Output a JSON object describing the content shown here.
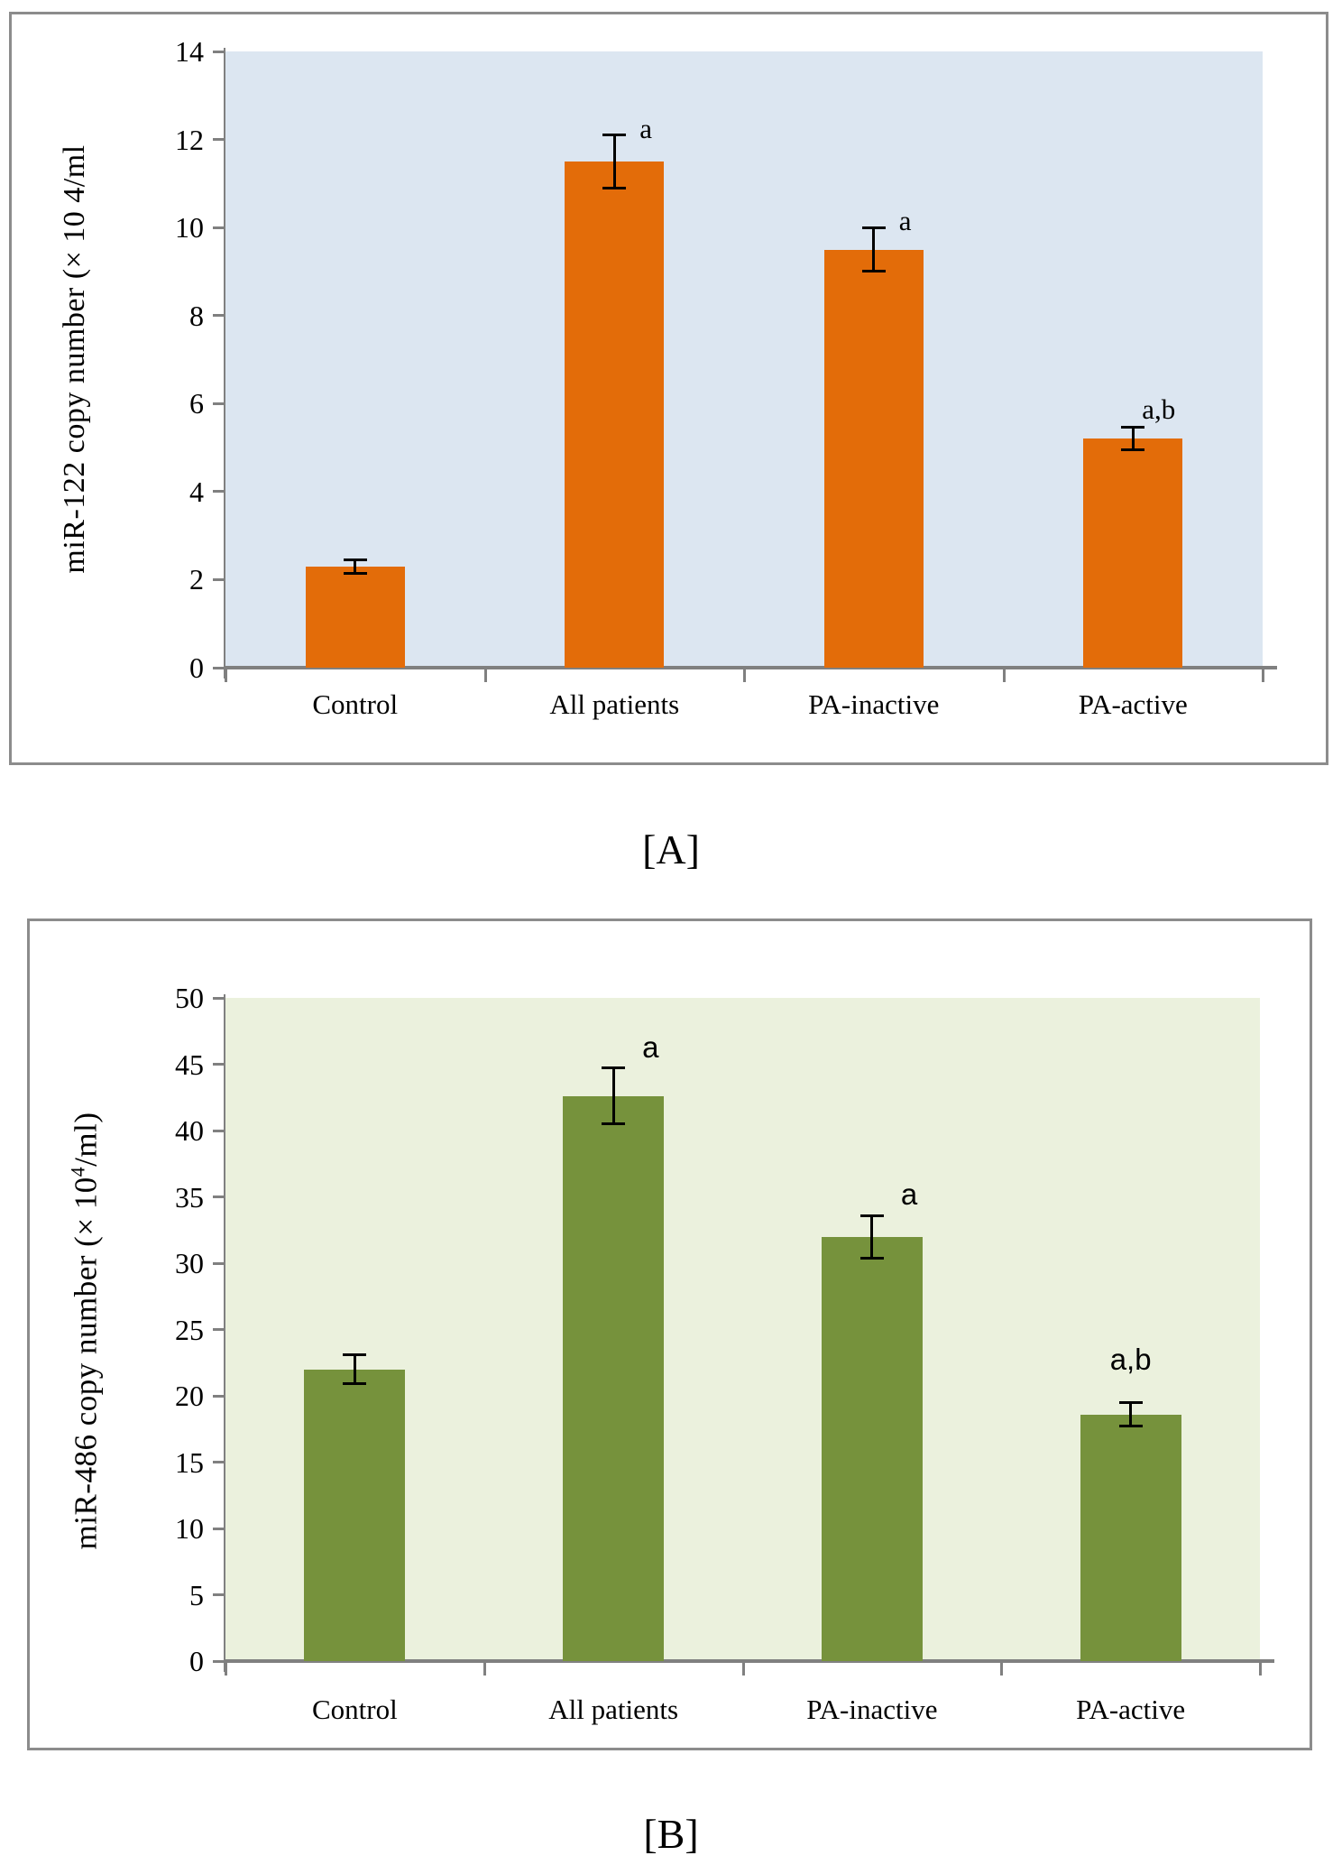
{
  "figure": {
    "caption_a": "[A]",
    "caption_b": "[B]"
  },
  "chart_data": [
    {
      "type": "bar",
      "panel": "A",
      "title": "",
      "xlabel": "",
      "ylabel": "miR-122 copy number (× 10 4/ml",
      "ylabel_parts": {
        "prefix": "miR-122 copy number (× 10 4/ml",
        "sup": "",
        "suffix": ""
      },
      "categories": [
        "Control",
        "All patients",
        "PA-inactive",
        "PA-active"
      ],
      "values": [
        2.3,
        11.5,
        9.5,
        5.2
      ],
      "errors": [
        0.15,
        0.6,
        0.5,
        0.26
      ],
      "annotations": [
        "",
        "a",
        "a",
        "a,b"
      ],
      "ylim": [
        0,
        14
      ],
      "yticks": [
        0,
        2,
        4,
        6,
        8,
        10,
        12,
        14
      ],
      "grid": false,
      "legend": "none",
      "bar_color": "#e36c09",
      "plot_bg_color": "#dce6f1",
      "axis_color": "#808080",
      "error_bar_color": "#000000"
    },
    {
      "type": "bar",
      "panel": "B",
      "title": "",
      "xlabel": "",
      "ylabel": "miR-486 copy number (× 10⁴/ml)",
      "ylabel_parts": {
        "prefix": "miR-486 copy number (× 10",
        "sup": "4",
        "suffix": "/ml)"
      },
      "categories": [
        "Control",
        "All patients",
        "PA-inactive",
        "PA-active"
      ],
      "values": [
        22,
        42.6,
        32,
        18.6
      ],
      "errors": [
        1.1,
        2.1,
        1.6,
        0.9
      ],
      "annotations": [
        "",
        "a",
        "a",
        "a,b"
      ],
      "ylim": [
        0,
        50
      ],
      "yticks": [
        0,
        5,
        10,
        15,
        20,
        25,
        30,
        35,
        40,
        45,
        50
      ],
      "grid": false,
      "legend": "none",
      "bar_color": "#76923c",
      "plot_bg_color": "#ebf1dd",
      "axis_color": "#808080",
      "error_bar_color": "#000000"
    }
  ]
}
